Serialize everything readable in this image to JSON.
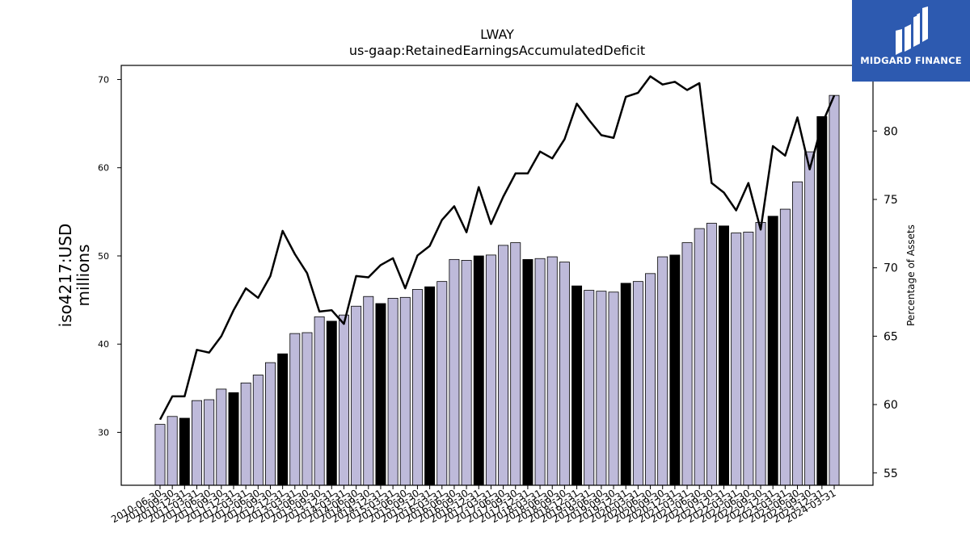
{
  "chart_data": {
    "type": "bar",
    "title": "LWAY",
    "subtitle": "us-gaap:RetainedEarningsAccumulatedDeficit",
    "ylabel": "iso4217:USD\nmillions",
    "y2label": "Percentage of Assets",
    "ylim": [
      24.0,
      71.6
    ],
    "y2lim": [
      54.1,
      84.8
    ],
    "yticks": [
      30,
      40,
      50,
      60,
      70
    ],
    "y2ticks": [
      55,
      60,
      65,
      70,
      75,
      80
    ],
    "grid": false,
    "legend": "none",
    "categories": [
      "2010-06-30",
      "2010-09-30",
      "2010-12-31",
      "2011-03-31",
      "2011-06-30",
      "2011-09-30",
      "2011-12-31",
      "2012-03-31",
      "2012-06-30",
      "2012-09-30",
      "2012-12-31",
      "2013-03-31",
      "2013-06-30",
      "2013-09-30",
      "2013-12-31",
      "2014-03-31",
      "2014-06-30",
      "2014-09-30",
      "2014-12-31",
      "2015-03-31",
      "2015-06-30",
      "2015-09-30",
      "2015-12-31",
      "2016-03-31",
      "2016-06-30",
      "2016-09-30",
      "2016-12-31",
      "2017-03-31",
      "2017-06-30",
      "2017-09-30",
      "2017-12-31",
      "2018-03-31",
      "2018-06-30",
      "2018-09-30",
      "2018-12-31",
      "2019-03-31",
      "2019-06-30",
      "2019-09-30",
      "2019-12-31",
      "2020-03-31",
      "2020-06-30",
      "2020-09-30",
      "2020-12-31",
      "2021-03-31",
      "2021-06-30",
      "2021-09-30",
      "2021-12-31",
      "2022-03-31",
      "2022-06-30",
      "2022-09-30",
      "2022-12-31",
      "2023-03-31",
      "2023-06-30",
      "2023-09-30",
      "2023-12-31",
      "2024-03-31"
    ],
    "series": [
      {
        "kind": "bar",
        "axis": "left",
        "values": [
          30.9,
          31.8,
          31.6,
          33.6,
          33.7,
          34.9,
          34.5,
          35.6,
          36.5,
          37.9,
          38.9,
          41.2,
          41.3,
          43.1,
          42.6,
          43.3,
          44.3,
          45.4,
          44.6,
          45.2,
          45.3,
          46.2,
          46.5,
          47.1,
          49.6,
          49.5,
          50.0,
          50.1,
          51.2,
          51.5,
          49.6,
          49.7,
          49.9,
          49.3,
          46.6,
          46.1,
          46.0,
          45.9,
          46.9,
          47.1,
          48.0,
          49.9,
          50.1,
          51.5,
          53.1,
          53.7,
          53.4,
          52.6,
          52.7,
          53.8,
          54.5,
          55.3,
          58.4,
          61.8,
          65.8,
          68.2
        ],
        "highlight": [
          false,
          false,
          true,
          false,
          false,
          false,
          true,
          false,
          false,
          false,
          true,
          false,
          false,
          false,
          true,
          false,
          false,
          false,
          true,
          false,
          false,
          false,
          true,
          false,
          false,
          false,
          true,
          false,
          false,
          false,
          true,
          false,
          false,
          false,
          true,
          false,
          false,
          false,
          true,
          false,
          false,
          false,
          true,
          false,
          false,
          false,
          true,
          false,
          false,
          false,
          true,
          false,
          false,
          false,
          true,
          false
        ]
      },
      {
        "kind": "line",
        "axis": "right",
        "values": [
          58.9,
          60.6,
          60.6,
          64.0,
          63.8,
          65.0,
          66.9,
          68.5,
          67.8,
          69.4,
          72.7,
          71.0,
          69.6,
          66.8,
          66.9,
          65.9,
          69.4,
          69.3,
          70.2,
          70.7,
          68.5,
          70.9,
          71.6,
          73.5,
          74.5,
          72.6,
          75.9,
          73.2,
          75.2,
          76.9,
          76.9,
          78.5,
          78.0,
          79.4,
          82.0,
          80.8,
          79.7,
          79.5,
          82.5,
          82.8,
          84.0,
          83.4,
          83.6,
          83.0,
          83.5,
          76.2,
          75.5,
          74.2,
          76.2,
          72.8,
          78.9,
          78.2,
          81.0,
          77.2,
          80.5,
          82.6
        ]
      }
    ],
    "colors": {
      "bar": "#bebada",
      "bar_highlight": "#000000",
      "bar_edge": "#000000",
      "line": "#000000"
    }
  },
  "logo": {
    "text": "MIDGARD FINANCE",
    "icon": "midgard-logo-icon",
    "background": "#2d5ab0"
  }
}
